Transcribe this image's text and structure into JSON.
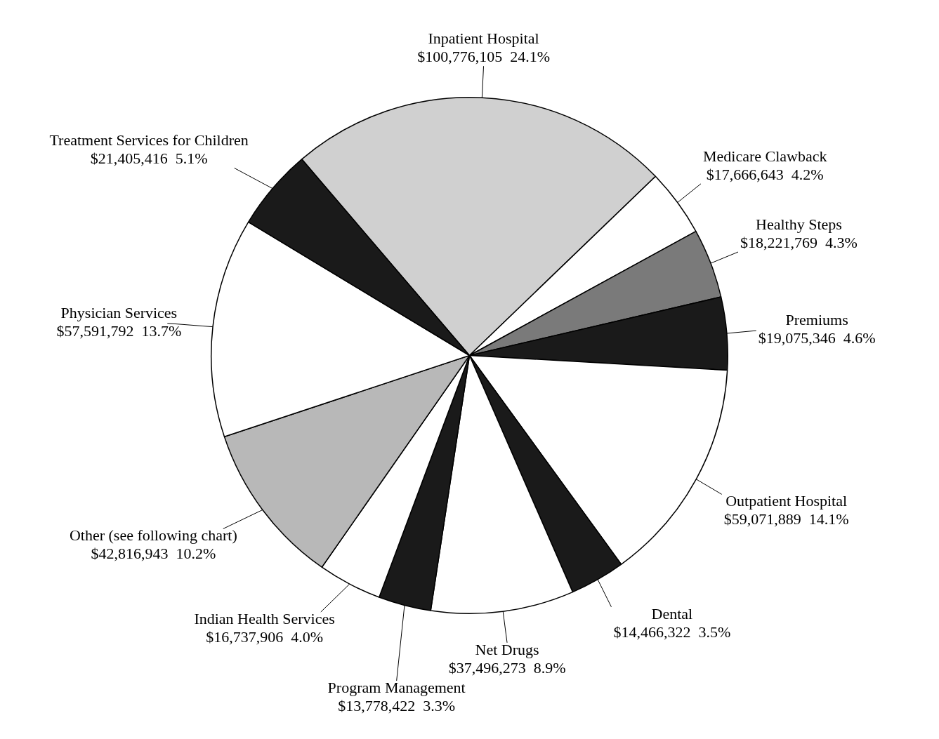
{
  "chart_data": {
    "type": "pie",
    "categories": [
      "Inpatient Hospital",
      "Medicare Clawback",
      "Healthy Steps",
      "Premiums",
      "Outpatient Hospital",
      "Dental",
      "Net Drugs",
      "Program Management",
      "Indian Health Services",
      "Other (see following chart)",
      "Physician Services",
      "Treatment Services for Children"
    ],
    "values": [
      100776105,
      17666643,
      18221769,
      19075346,
      59071889,
      14466322,
      37496273,
      13778422,
      16737906,
      42816943,
      57591792,
      21405416
    ],
    "value_labels": [
      "$100,776,105  24.1%",
      "$17,666,643  4.2%",
      "$18,221,769  4.3%",
      "$19,075,346  4.6%",
      "$59,071,889  14.1%",
      "$14,466,322  3.5%",
      "$37,496,273  8.9%",
      "$13,778,422  3.3%",
      "$16,737,906  4.0%",
      "$42,816,943  10.2%",
      "$57,591,792  13.7%",
      "$21,405,416  5.1%"
    ],
    "colors": [
      "#d0d0d0",
      "#ffffff",
      "#7a7a7a",
      "#1a1a1a",
      "#ffffff",
      "#1a1a1a",
      "#ffffff",
      "#1a1a1a",
      "#ffffff",
      "#b8b8b8",
      "#ffffff",
      "#1a1a1a"
    ],
    "legend": false
  }
}
